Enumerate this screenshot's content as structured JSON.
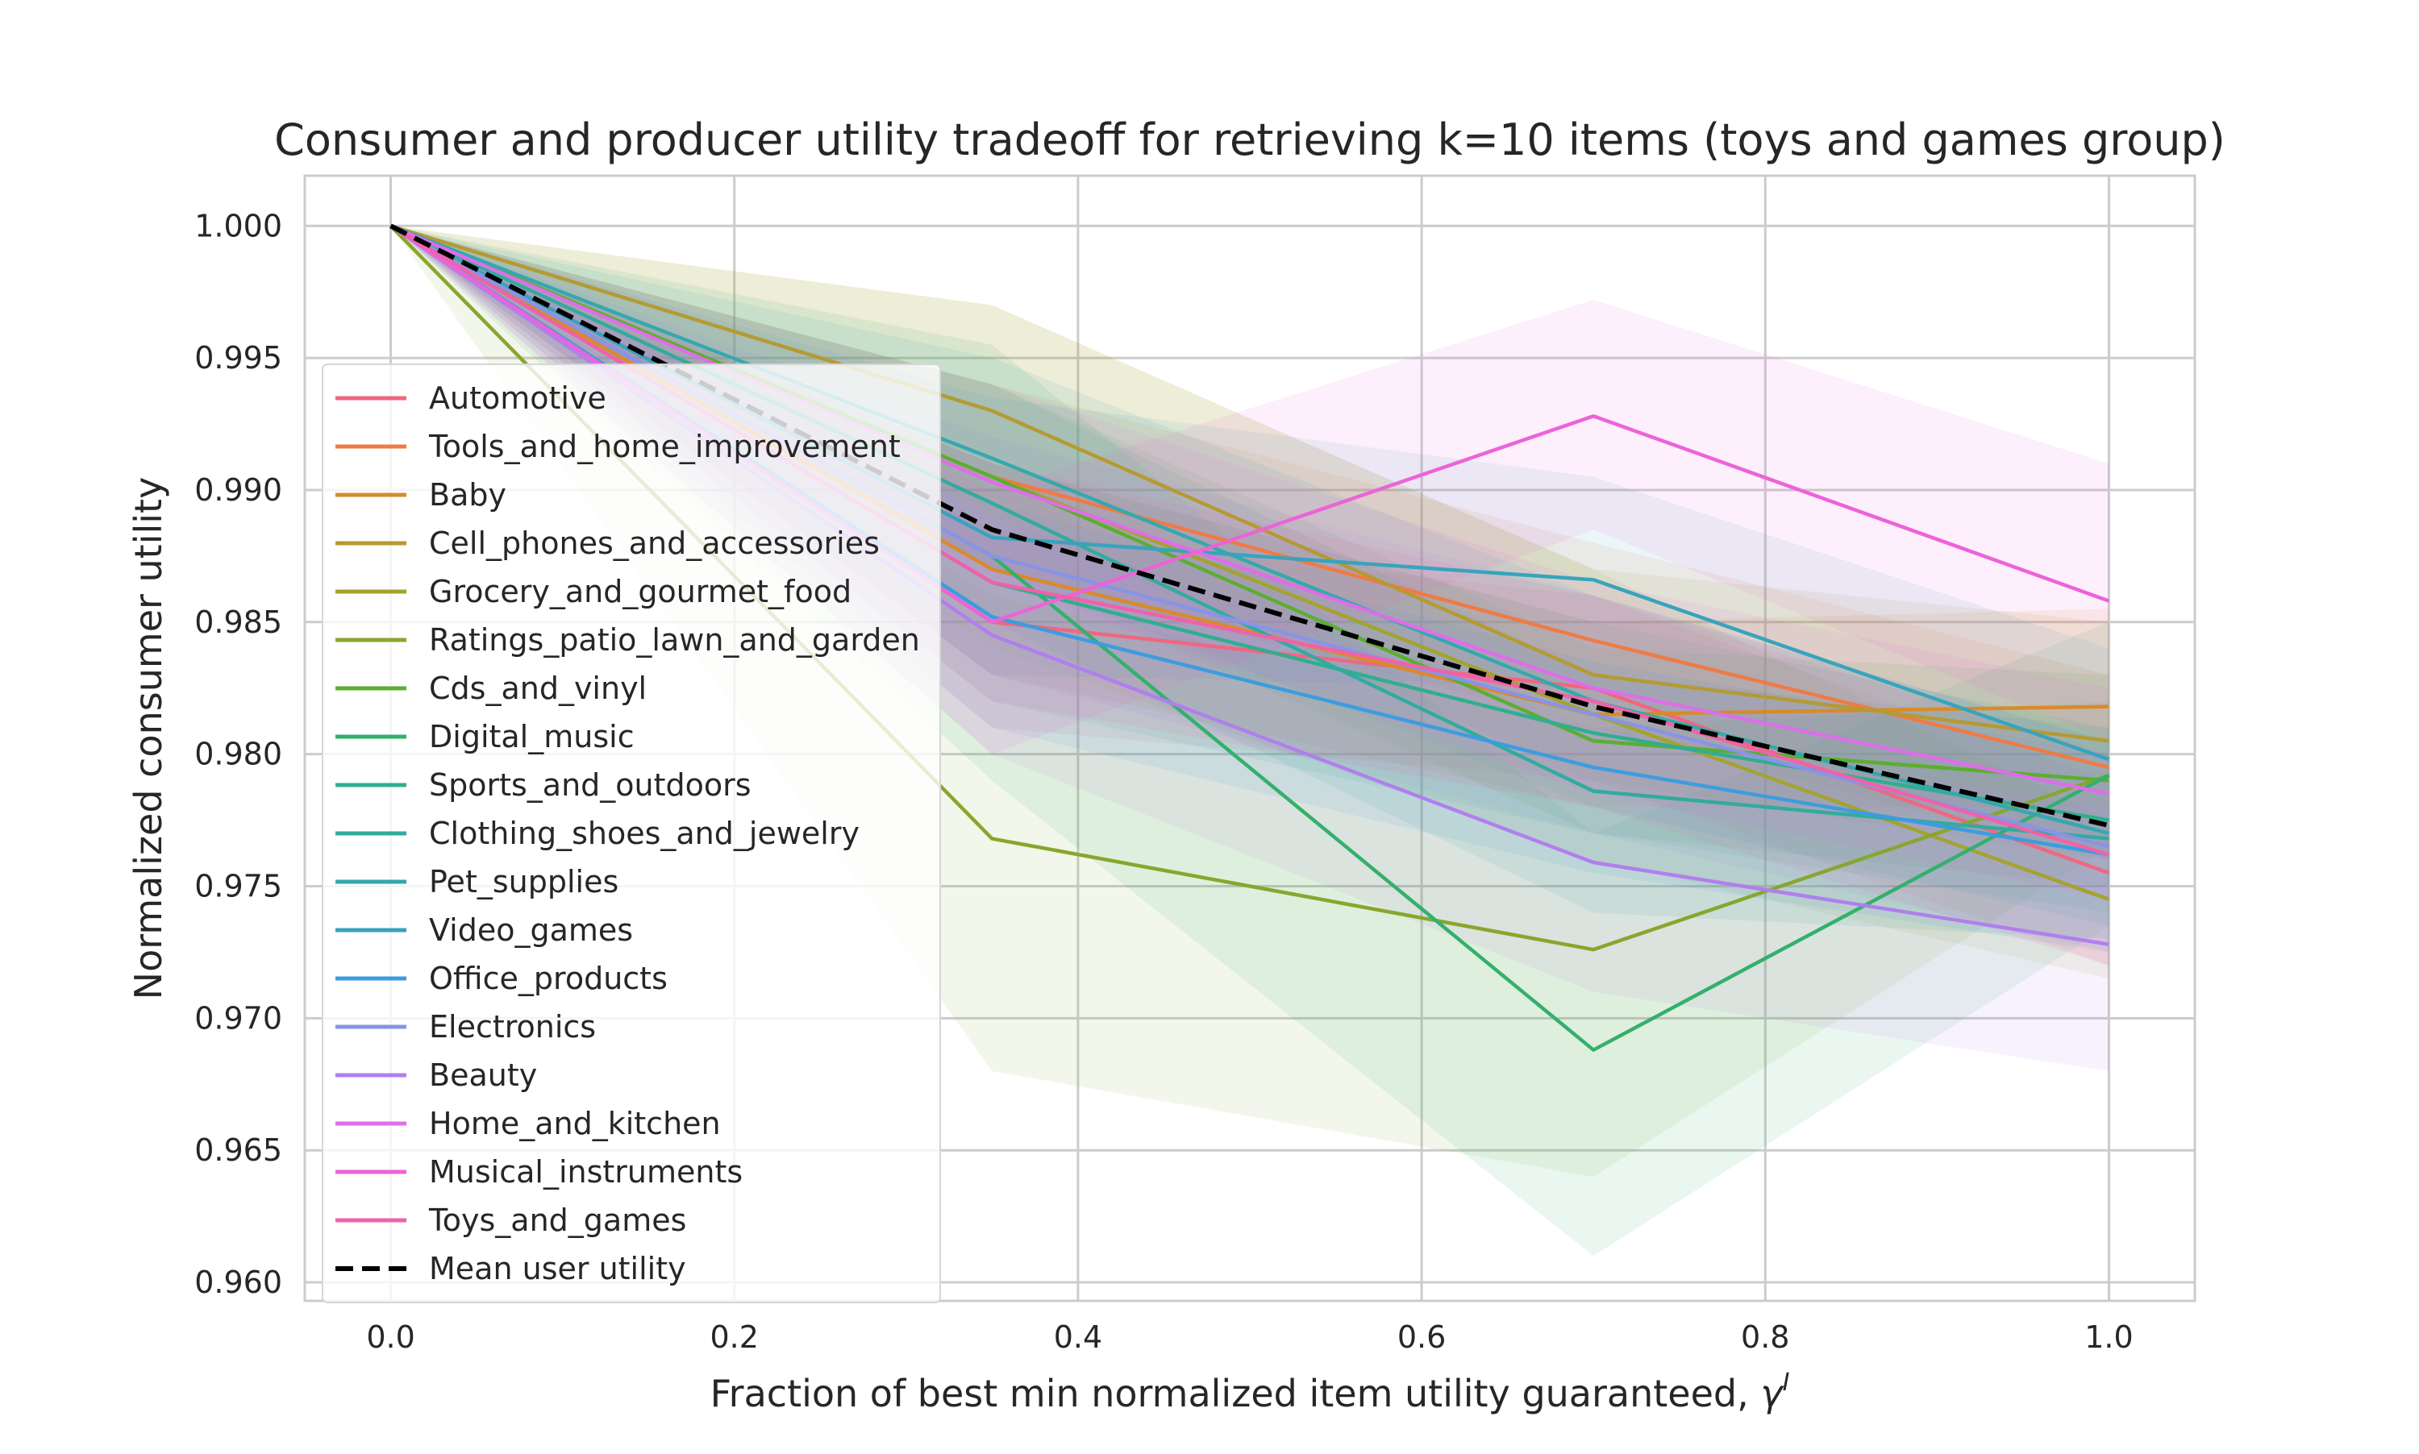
{
  "chart_data": {
    "type": "line",
    "title": "Consumer and producer utility tradeoff for retrieving k=10 items (toys and games group)",
    "xlabel": "Fraction of best min normalized item utility guaranteed, ",
    "xlabel_symbol": "γ",
    "xlabel_superscript": "I",
    "ylabel": "Normalized consumer utility",
    "x": [
      0.0,
      0.35,
      0.7,
      1.0
    ],
    "xlim": [
      -0.05,
      1.05
    ],
    "ylim": [
      0.9593,
      1.0019
    ],
    "xticks": [
      0.0,
      0.2,
      0.4,
      0.6,
      0.8,
      1.0
    ],
    "xtick_labels": [
      "0.0",
      "0.2",
      "0.4",
      "0.6",
      "0.8",
      "1.0"
    ],
    "yticks": [
      0.96,
      0.965,
      0.97,
      0.975,
      0.98,
      0.985,
      0.99,
      0.995,
      1.0
    ],
    "ytick_labels": [
      "0.960",
      "0.965",
      "0.970",
      "0.975",
      "0.980",
      "0.985",
      "0.990",
      "0.995",
      "1.000"
    ],
    "grid": true,
    "legend_position": "upper-left",
    "series": [
      {
        "name": "Automotive",
        "color": "#f0677f",
        "values": [
          1.0,
          0.985,
          0.9825,
          0.9755
        ],
        "band": [
          [
            1.0,
            1.0
          ],
          [
            0.981,
            0.9885
          ],
          [
            0.979,
            0.986
          ],
          [
            0.972,
            0.979
          ]
        ]
      },
      {
        "name": "Tools_and_home_improvement",
        "color": "#f07a45",
        "values": [
          1.0,
          0.9905,
          0.9843,
          0.9795
        ],
        "band": [
          [
            1.0,
            1.0
          ],
          [
            0.987,
            0.994
          ],
          [
            0.981,
            0.988
          ],
          [
            0.976,
            0.983
          ]
        ]
      },
      {
        "name": "Baby",
        "color": "#d98a2b",
        "values": [
          1.0,
          0.987,
          0.9815,
          0.9818
        ],
        "band": [
          [
            1.0,
            1.0
          ],
          [
            0.983,
            0.991
          ],
          [
            0.978,
            0.985
          ],
          [
            0.978,
            0.9855
          ]
        ]
      },
      {
        "name": "Cell_phones_and_accessories",
        "color": "#b59a33",
        "values": [
          1.0,
          0.993,
          0.983,
          0.9805
        ],
        "band": [
          [
            1.0,
            1.0
          ],
          [
            0.989,
            0.997
          ],
          [
            0.979,
            0.987
          ],
          [
            0.976,
            0.985
          ]
        ]
      },
      {
        "name": "Grocery_and_gourmet_food",
        "color": "#a3a330",
        "values": [
          1.0,
          0.9905,
          0.9815,
          0.9745
        ],
        "band": [
          [
            1.0,
            1.0
          ],
          [
            0.984,
            0.997
          ],
          [
            0.976,
            0.987
          ],
          [
            0.9715,
            0.9775
          ]
        ]
      },
      {
        "name": "Ratings_patio_lawn_and_garden",
        "color": "#88a62e",
        "values": [
          1.0,
          0.9768,
          0.9726,
          0.9792
        ],
        "band": [
          [
            1.0,
            1.0
          ],
          [
            0.968,
            0.986
          ],
          [
            0.964,
            0.981
          ],
          [
            0.9765,
            0.982
          ]
        ]
      },
      {
        "name": "Cds_and_vinyl",
        "color": "#5bae32",
        "values": [
          1.0,
          0.9905,
          0.9805,
          0.979
        ],
        "band": [
          [
            1.0,
            1.0
          ],
          [
            0.987,
            0.994
          ],
          [
            0.977,
            0.984
          ],
          [
            0.975,
            0.983
          ]
        ]
      },
      {
        "name": "Digital_music",
        "color": "#33b06c",
        "values": [
          1.0,
          0.9875,
          0.9688,
          0.9792
        ],
        "band": [
          [
            1.0,
            1.0
          ],
          [
            0.979,
            0.9955
          ],
          [
            0.961,
            0.977
          ],
          [
            0.9735,
            0.985
          ]
        ]
      },
      {
        "name": "Sports_and_outdoors",
        "color": "#30ae8f",
        "values": [
          1.0,
          0.9865,
          0.9808,
          0.9775
        ],
        "band": [
          [
            1.0,
            1.0
          ],
          [
            0.982,
            0.991
          ],
          [
            0.977,
            0.985
          ],
          [
            0.974,
            0.981
          ]
        ]
      },
      {
        "name": "Clothing_shoes_and_jewelry",
        "color": "#32ab9f",
        "values": [
          1.0,
          0.9895,
          0.9786,
          0.9768
        ],
        "band": [
          [
            1.0,
            1.0
          ],
          [
            0.985,
            0.994
          ],
          [
            0.974,
            0.983
          ],
          [
            0.973,
            0.981
          ]
        ]
      },
      {
        "name": "Pet_supplies",
        "color": "#35a8ad",
        "values": [
          1.0,
          0.9912,
          0.982,
          0.977
        ],
        "band": [
          [
            1.0,
            1.0
          ],
          [
            0.987,
            0.995
          ],
          [
            0.978,
            0.986
          ],
          [
            0.9735,
            0.9805
          ]
        ]
      },
      {
        "name": "Video_games",
        "color": "#38a3bd",
        "values": [
          1.0,
          0.9882,
          0.9866,
          0.9798
        ],
        "band": [
          [
            1.0,
            1.0
          ],
          [
            0.983,
            0.9935
          ],
          [
            0.9825,
            0.9905
          ],
          [
            0.976,
            0.984
          ]
        ]
      },
      {
        "name": "Office_products",
        "color": "#3c9ce0",
        "values": [
          1.0,
          0.9852,
          0.9795,
          0.9762
        ],
        "band": [
          [
            1.0,
            1.0
          ],
          [
            0.981,
            0.9895
          ],
          [
            0.9755,
            0.9835
          ],
          [
            0.9725,
            0.98
          ]
        ]
      },
      {
        "name": "Electronics",
        "color": "#8993e6",
        "values": [
          1.0,
          0.9875,
          0.9815,
          0.9765
        ],
        "band": [
          [
            1.0,
            1.0
          ],
          [
            0.983,
            0.992
          ],
          [
            0.977,
            0.986
          ],
          [
            0.9725,
            0.9805
          ]
        ]
      },
      {
        "name": "Beauty",
        "color": "#b07fee",
        "values": [
          1.0,
          0.9845,
          0.9759,
          0.9728
        ],
        "band": [
          [
            1.0,
            1.0
          ],
          [
            0.98,
            0.989
          ],
          [
            0.971,
            0.981
          ],
          [
            0.968,
            0.978
          ]
        ]
      },
      {
        "name": "Home_and_kitchen",
        "color": "#dd6ee8",
        "values": [
          1.0,
          0.9903,
          0.9825,
          0.9785
        ],
        "band": [
          [
            1.0,
            1.0
          ],
          [
            0.9865,
            0.994
          ],
          [
            0.9785,
            0.9865
          ],
          [
            0.9745,
            0.9825
          ]
        ]
      },
      {
        "name": "Musical_instruments",
        "color": "#ec63d8",
        "values": [
          1.0,
          0.985,
          0.9928,
          0.9858
        ],
        "band": [
          [
            1.0,
            1.0
          ],
          [
            0.98,
            0.99
          ],
          [
            0.9885,
            0.9972
          ],
          [
            0.9805,
            0.991
          ]
        ]
      },
      {
        "name": "Toys_and_games",
        "color": "#f062a8",
        "values": [
          1.0,
          0.9865,
          0.982,
          0.9762
        ],
        "band": [
          [
            1.0,
            1.0
          ],
          [
            0.982,
            0.991
          ],
          [
            0.978,
            0.986
          ],
          [
            0.972,
            0.98
          ]
        ]
      },
      {
        "name": "Mean user utility",
        "color": "#000000",
        "dashed": true,
        "values": [
          1.0,
          0.9885,
          0.9818,
          0.9773
        ]
      }
    ]
  }
}
